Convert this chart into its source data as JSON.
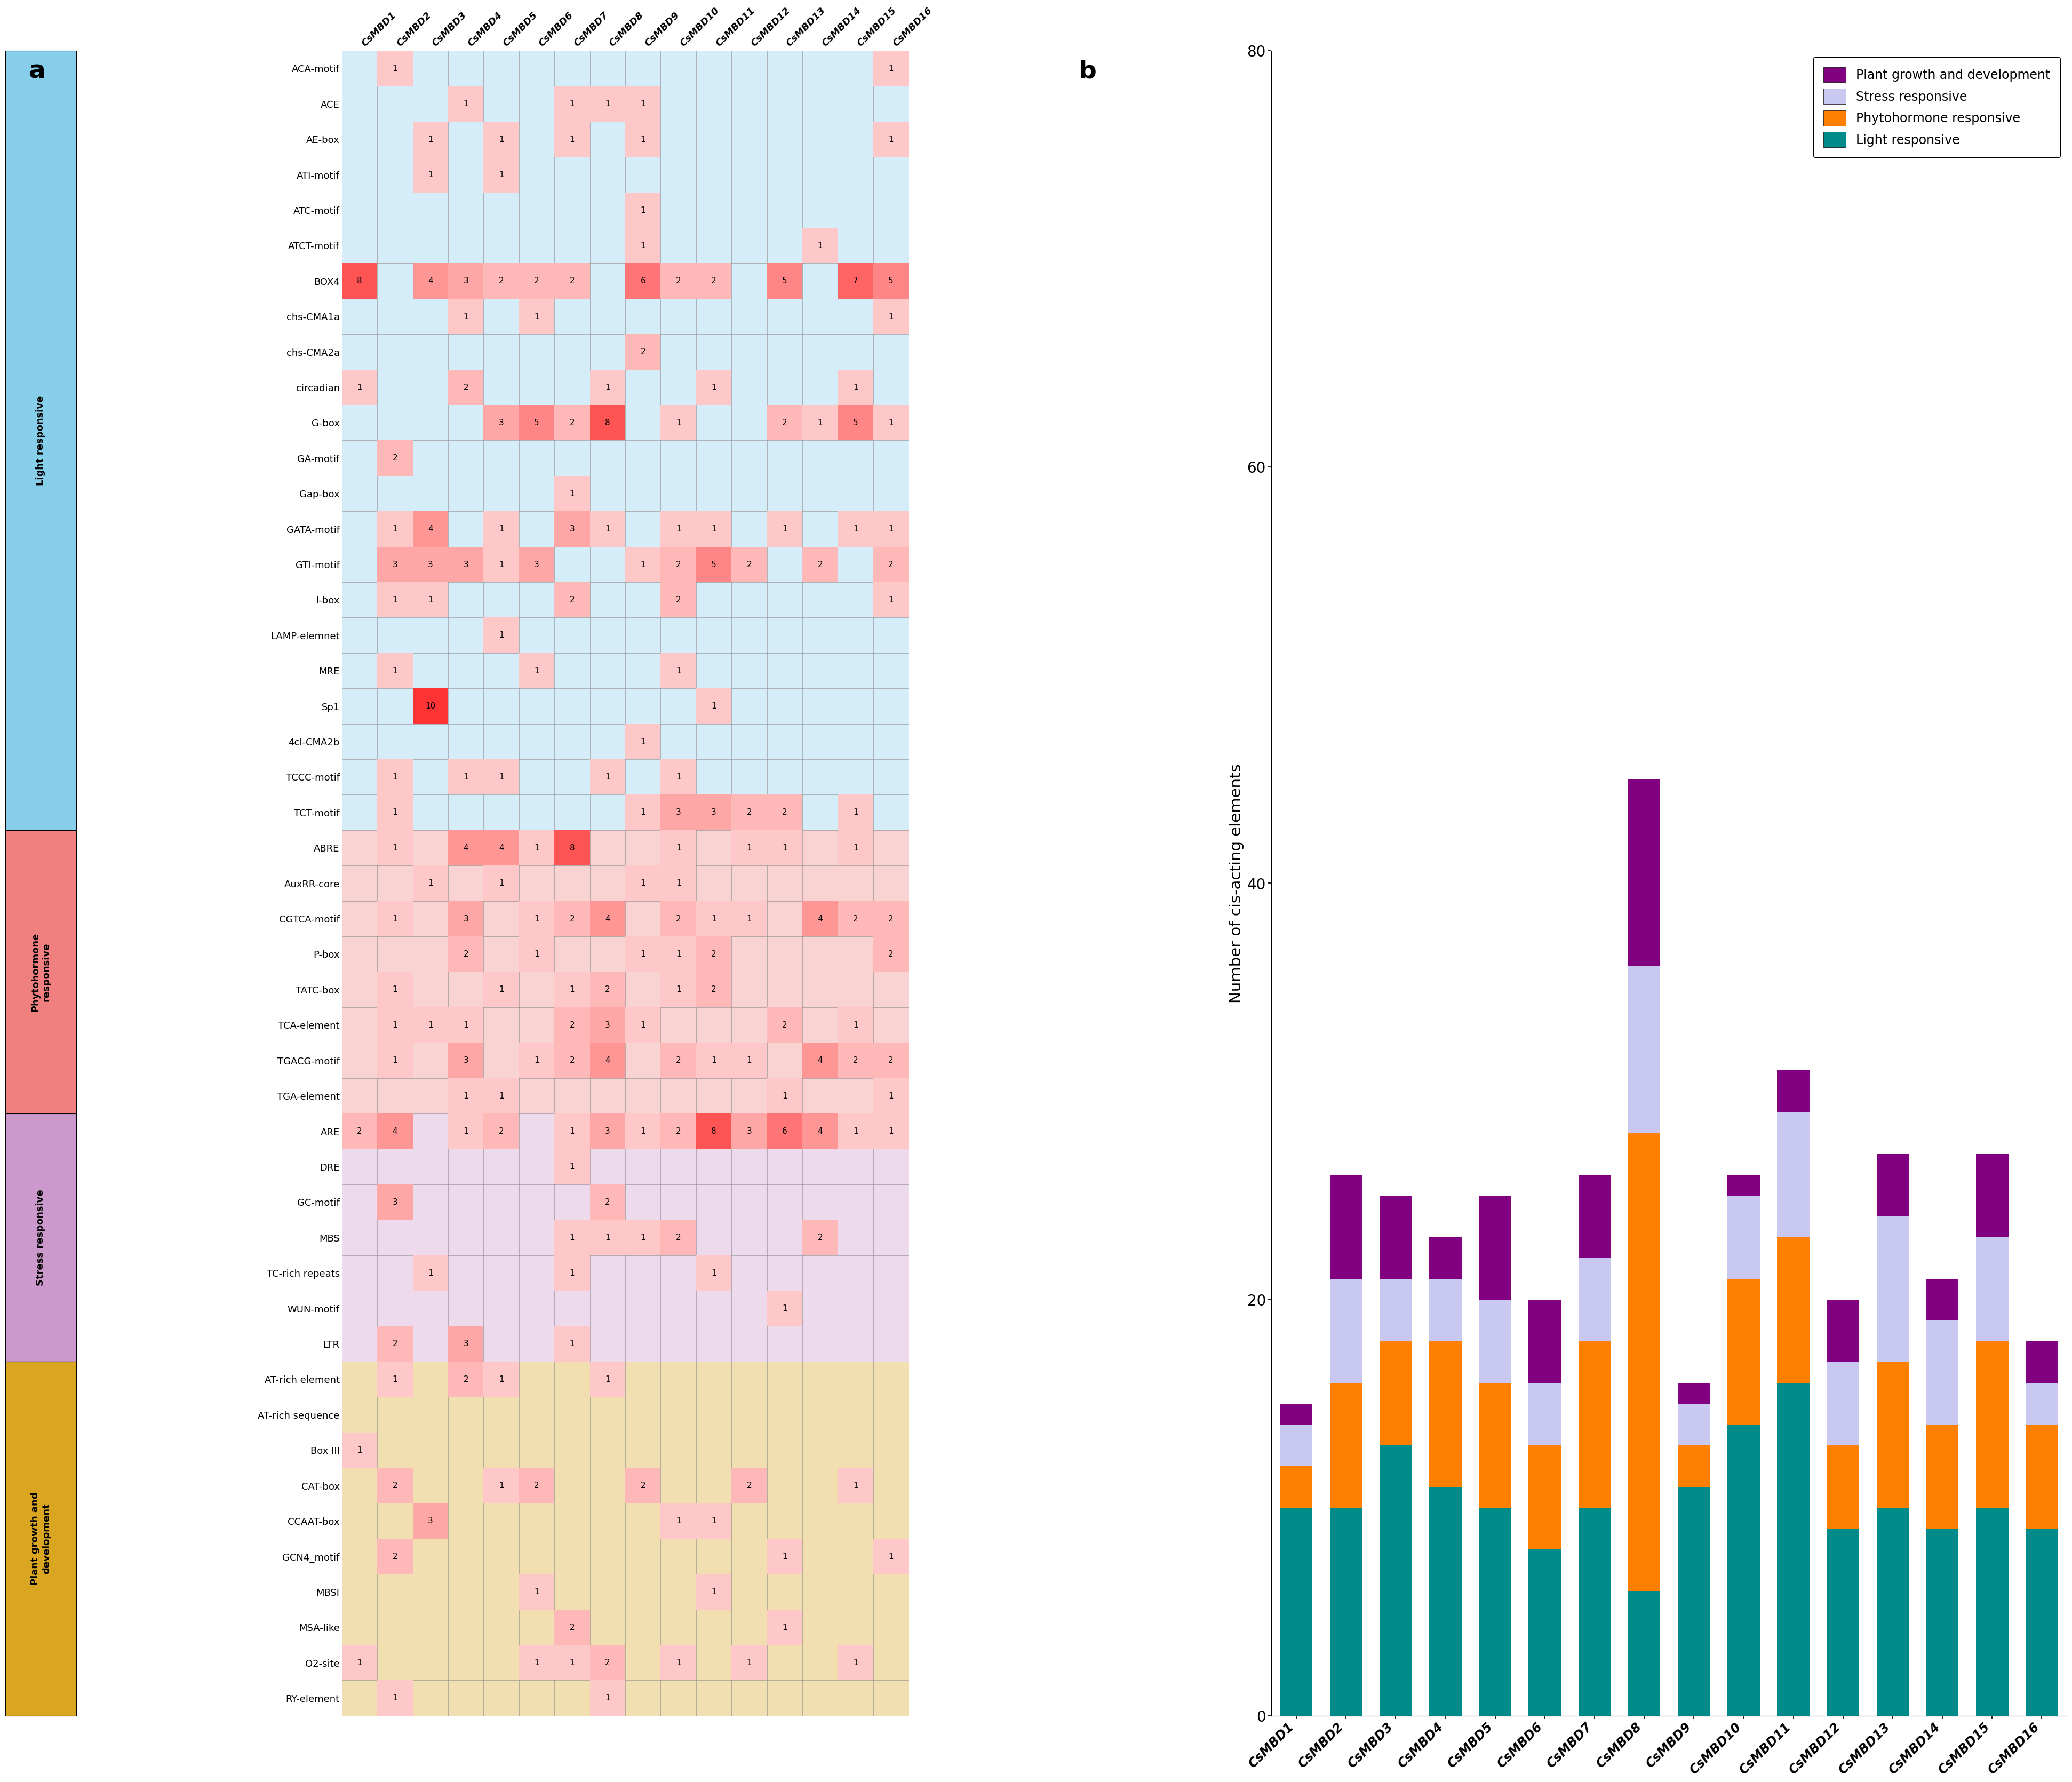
{
  "columns": [
    "CsMBD1",
    "CsMBD2",
    "CsMBD3",
    "CsMBD4",
    "CsMBD5",
    "CsMBD6",
    "CsMBD7",
    "CsMBD8",
    "CsMBD9",
    "CsMBD10",
    "CsMBD11",
    "CsMBD12",
    "CsMBD13",
    "CsMBD14",
    "CsMBD15",
    "CsMBD16"
  ],
  "categories": {
    "Light responsive": [
      "ACA-motif",
      "ACE",
      "AE-box",
      "ATI-motif",
      "ATC-motif",
      "ATCT-motif",
      "BOX4",
      "chs-CMA1a",
      "chs-CMA2a",
      "circadian",
      "G-box",
      "GA-motif",
      "Gap-box",
      "GATA-motif",
      "GTI-motif",
      "I-box",
      "LAMP-elemnet",
      "MRE",
      "Sp1",
      "4cl-CMA2b",
      "TCCC-motif",
      "TCT-motif"
    ],
    "Phytohormone responsive": [
      "ABRE",
      "AuxRR-core",
      "CGTCA-motif",
      "P-box",
      "TATC-box",
      "TCA-element",
      "TGACG-motif",
      "TGA-element"
    ],
    "Stress responsive": [
      "ARE",
      "DRE",
      "GC-motif",
      "MBS",
      "TC-rich repeats",
      "WUN-motif",
      "LTR"
    ],
    "Plant growth and\ndevelopment": [
      "AT-rich element",
      "AT-rich sequence",
      "Box III",
      "CAT-box",
      "CCAAT-box",
      "GCN4_motif",
      "MBSI",
      "MSA-like",
      "O2-site",
      "RY-element"
    ]
  },
  "grid_data": {
    "ACA-motif": [
      0,
      1,
      0,
      0,
      0,
      0,
      0,
      0,
      0,
      0,
      0,
      0,
      0,
      0,
      0,
      1
    ],
    "ACE": [
      0,
      0,
      0,
      1,
      0,
      0,
      1,
      1,
      1,
      0,
      0,
      0,
      0,
      0,
      0,
      0
    ],
    "AE-box": [
      0,
      0,
      1,
      0,
      1,
      0,
      1,
      0,
      1,
      0,
      0,
      0,
      0,
      0,
      0,
      1
    ],
    "ATI-motif": [
      0,
      0,
      1,
      0,
      1,
      0,
      0,
      0,
      0,
      0,
      0,
      0,
      0,
      0,
      0,
      0
    ],
    "ATC-motif": [
      0,
      0,
      0,
      0,
      0,
      0,
      0,
      0,
      1,
      0,
      0,
      0,
      0,
      0,
      0,
      0
    ],
    "ATCT-motif": [
      0,
      0,
      0,
      0,
      0,
      0,
      0,
      0,
      1,
      0,
      0,
      0,
      0,
      1,
      0,
      0
    ],
    "BOX4": [
      8,
      0,
      4,
      3,
      2,
      2,
      2,
      0,
      6,
      2,
      2,
      0,
      5,
      0,
      7,
      5
    ],
    "chs-CMA1a": [
      0,
      0,
      0,
      1,
      0,
      1,
      0,
      0,
      0,
      0,
      0,
      0,
      0,
      0,
      0,
      1
    ],
    "chs-CMA2a": [
      0,
      0,
      0,
      0,
      0,
      0,
      0,
      0,
      2,
      0,
      0,
      0,
      0,
      0,
      0,
      0
    ],
    "circadian": [
      1,
      0,
      0,
      2,
      0,
      0,
      0,
      1,
      0,
      0,
      1,
      0,
      0,
      0,
      1,
      0
    ],
    "G-box": [
      0,
      0,
      0,
      0,
      3,
      5,
      2,
      8,
      0,
      1,
      0,
      0,
      2,
      1,
      5,
      1
    ],
    "GA-motif": [
      0,
      2,
      0,
      0,
      0,
      0,
      0,
      0,
      0,
      0,
      0,
      0,
      0,
      0,
      0,
      0
    ],
    "Gap-box": [
      0,
      0,
      0,
      0,
      0,
      0,
      1,
      0,
      0,
      0,
      0,
      0,
      0,
      0,
      0,
      0
    ],
    "GATA-motif": [
      0,
      1,
      4,
      0,
      1,
      0,
      3,
      1,
      0,
      1,
      1,
      0,
      1,
      0,
      1,
      1
    ],
    "GTI-motif": [
      0,
      3,
      3,
      3,
      1,
      3,
      0,
      0,
      1,
      2,
      5,
      2,
      0,
      2,
      0,
      2
    ],
    "I-box": [
      0,
      1,
      1,
      0,
      0,
      0,
      2,
      0,
      0,
      2,
      0,
      0,
      0,
      0,
      0,
      1
    ],
    "LAMP-elemnet": [
      0,
      0,
      0,
      0,
      1,
      0,
      0,
      0,
      0,
      0,
      0,
      0,
      0,
      0,
      0,
      0
    ],
    "MRE": [
      0,
      1,
      0,
      0,
      0,
      1,
      0,
      0,
      0,
      1,
      0,
      0,
      0,
      0,
      0,
      0
    ],
    "Sp1": [
      0,
      0,
      10,
      0,
      0,
      0,
      0,
      0,
      0,
      0,
      1,
      0,
      0,
      0,
      0,
      0
    ],
    "4cl-CMA2b": [
      0,
      0,
      0,
      0,
      0,
      0,
      0,
      0,
      1,
      0,
      0,
      0,
      0,
      0,
      0,
      0
    ],
    "TCCC-motif": [
      0,
      1,
      0,
      1,
      1,
      0,
      0,
      1,
      0,
      1,
      0,
      0,
      0,
      0,
      0,
      0
    ],
    "TCT-motif": [
      0,
      1,
      0,
      0,
      0,
      0,
      0,
      0,
      1,
      3,
      3,
      2,
      2,
      0,
      1,
      0
    ],
    "ABRE": [
      0,
      1,
      0,
      4,
      4,
      1,
      8,
      0,
      0,
      1,
      0,
      1,
      1,
      0,
      1,
      0
    ],
    "AuxRR-core": [
      0,
      0,
      1,
      0,
      1,
      0,
      0,
      0,
      1,
      1,
      0,
      0,
      0,
      0,
      0,
      0
    ],
    "CGTCA-motif": [
      0,
      1,
      0,
      3,
      0,
      1,
      2,
      4,
      0,
      2,
      1,
      1,
      0,
      4,
      2,
      2
    ],
    "P-box": [
      0,
      0,
      0,
      2,
      0,
      1,
      0,
      0,
      1,
      1,
      2,
      0,
      0,
      0,
      0,
      2
    ],
    "TATC-box": [
      0,
      1,
      0,
      0,
      1,
      0,
      1,
      2,
      0,
      1,
      2,
      0,
      0,
      0,
      0,
      0
    ],
    "TCA-element": [
      0,
      1,
      1,
      1,
      0,
      0,
      2,
      3,
      1,
      0,
      0,
      0,
      2,
      0,
      1,
      0
    ],
    "TGACG-motif": [
      0,
      1,
      0,
      3,
      0,
      1,
      2,
      4,
      0,
      2,
      1,
      1,
      0,
      4,
      2,
      2
    ],
    "TGA-element": [
      0,
      0,
      0,
      1,
      1,
      0,
      0,
      0,
      0,
      0,
      0,
      0,
      1,
      0,
      0,
      1
    ],
    "ARE": [
      2,
      4,
      0,
      1,
      2,
      0,
      1,
      3,
      1,
      2,
      8,
      3,
      6,
      4,
      1,
      1
    ],
    "DRE": [
      0,
      0,
      0,
      0,
      0,
      0,
      1,
      0,
      0,
      0,
      0,
      0,
      0,
      0,
      0,
      0
    ],
    "GC-motif": [
      0,
      3,
      0,
      0,
      0,
      0,
      0,
      2,
      0,
      0,
      0,
      0,
      0,
      0,
      0,
      0
    ],
    "MBS": [
      0,
      0,
      0,
      0,
      0,
      0,
      1,
      1,
      1,
      2,
      0,
      0,
      0,
      2,
      0,
      0
    ],
    "TC-rich repeats": [
      0,
      0,
      1,
      0,
      0,
      0,
      1,
      0,
      0,
      0,
      1,
      0,
      0,
      0,
      0,
      0
    ],
    "WUN-motif": [
      0,
      0,
      0,
      0,
      0,
      0,
      0,
      0,
      0,
      0,
      0,
      0,
      1,
      0,
      0,
      0
    ],
    "LTR": [
      0,
      2,
      0,
      3,
      0,
      0,
      1,
      0,
      0,
      0,
      0,
      0,
      0,
      0,
      0,
      0
    ],
    "AT-rich element": [
      0,
      1,
      0,
      2,
      1,
      0,
      0,
      1,
      0,
      0,
      0,
      0,
      0,
      0,
      0,
      0
    ],
    "AT-rich sequence": [
      0,
      0,
      0,
      0,
      0,
      0,
      0,
      0,
      0,
      0,
      0,
      0,
      0,
      0,
      0,
      0
    ],
    "Box III": [
      1,
      0,
      0,
      0,
      0,
      0,
      0,
      0,
      0,
      0,
      0,
      0,
      0,
      0,
      0,
      0
    ],
    "CAT-box": [
      0,
      2,
      0,
      0,
      1,
      2,
      0,
      0,
      2,
      0,
      0,
      2,
      0,
      0,
      1,
      0
    ],
    "CCAAT-box": [
      0,
      0,
      3,
      0,
      0,
      0,
      0,
      0,
      0,
      1,
      1,
      0,
      0,
      0,
      0,
      0
    ],
    "GCN4_motif": [
      0,
      2,
      0,
      0,
      0,
      0,
      0,
      0,
      0,
      0,
      0,
      0,
      1,
      0,
      0,
      1
    ],
    "MBSI": [
      0,
      0,
      0,
      0,
      0,
      1,
      0,
      0,
      0,
      0,
      1,
      0,
      0,
      0,
      0,
      0
    ],
    "MSA-like": [
      0,
      0,
      0,
      0,
      0,
      0,
      2,
      0,
      0,
      0,
      0,
      0,
      1,
      0,
      0,
      0
    ],
    "O2-site": [
      1,
      0,
      0,
      0,
      0,
      1,
      1,
      2,
      0,
      1,
      0,
      1,
      0,
      0,
      1,
      0
    ],
    "RY-element": [
      0,
      1,
      0,
      0,
      0,
      0,
      0,
      1,
      0,
      0,
      0,
      0,
      0,
      0,
      0,
      0
    ]
  },
  "section_colors": {
    "Light responsive": "#87CEEB",
    "Phytohormone responsive": "#F08080",
    "Stress responsive": "#CC99CC",
    "Plant growth and\ndevelopment": "#DAA520"
  },
  "section_display": {
    "Light responsive": "Light responsive",
    "Phytohormone responsive": "Phytohormone\nresponsive",
    "Stress responsive": "Stress responsive",
    "Plant growth and\ndevelopment": "Plant growth and\ndevelopment"
  },
  "bar_data": {
    "CsMBD1": {
      "light": 10,
      "phytohormone": 2,
      "stress": 2,
      "plant": 1
    },
    "CsMBD2": {
      "light": 10,
      "phytohormone": 6,
      "stress": 5,
      "plant": 5
    },
    "CsMBD3": {
      "light": 13,
      "phytohormone": 5,
      "stress": 3,
      "plant": 4
    },
    "CsMBD4": {
      "light": 11,
      "phytohormone": 7,
      "stress": 3,
      "plant": 2
    },
    "CsMBD5": {
      "light": 10,
      "phytohormone": 6,
      "stress": 4,
      "plant": 5
    },
    "CsMBD6": {
      "light": 8,
      "phytohormone": 5,
      "stress": 3,
      "plant": 4
    },
    "CsMBD7": {
      "light": 10,
      "phytohormone": 8,
      "stress": 4,
      "plant": 4
    },
    "CsMBD8": {
      "light": 6,
      "phytohormone": 22,
      "stress": 8,
      "plant": 9
    },
    "CsMBD9": {
      "light": 11,
      "phytohormone": 2,
      "stress": 2,
      "plant": 1
    },
    "CsMBD10": {
      "light": 14,
      "phytohormone": 7,
      "stress": 4,
      "plant": 1
    },
    "CsMBD11": {
      "light": 16,
      "phytohormone": 7,
      "stress": 6,
      "plant": 2
    },
    "CsMBD12": {
      "light": 9,
      "phytohormone": 4,
      "stress": 4,
      "plant": 3
    },
    "CsMBD13": {
      "light": 10,
      "phytohormone": 7,
      "stress": 7,
      "plant": 3
    },
    "CsMBD14": {
      "light": 9,
      "phytohormone": 5,
      "stress": 5,
      "plant": 2
    },
    "CsMBD15": {
      "light": 10,
      "phytohormone": 8,
      "stress": 5,
      "plant": 4
    },
    "CsMBD16": {
      "light": 9,
      "phytohormone": 5,
      "stress": 2,
      "plant": 2
    }
  },
  "bar_colors": {
    "light": "#008B8B",
    "phytohormone": "#FF7F00",
    "stress": "#C8C8F0",
    "plant": "#800080"
  },
  "legend_labels": {
    "plant": "Plant growth and development",
    "stress": "Stress responsive",
    "phytohormone": "Phytohormone responsive",
    "light": "Light responsive"
  },
  "ylabel_bar": "Number of cis-acting elements",
  "ylim_bar": [
    0,
    80
  ]
}
